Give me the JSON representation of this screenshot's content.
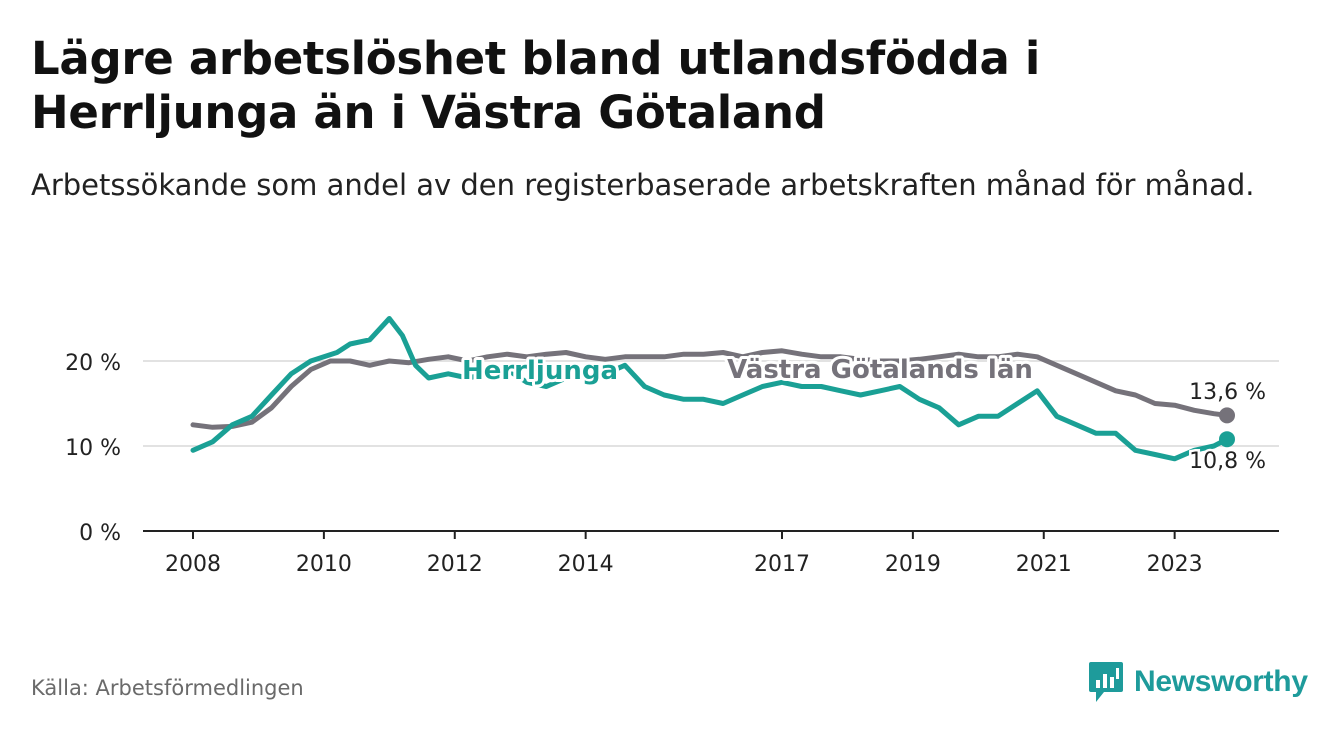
{
  "title": "Lägre arbetslöshet bland utlandsfödda i Herrljunga än i Västra Götaland",
  "subtitle": "Arbetssökande som andel av den registerbaserade arbetskraften månad för månad.",
  "source": "Källa: Arbetsförmedlingen",
  "brand": "Newsworthy",
  "colors": {
    "herrljunga": "#1aa095",
    "vgl": "#75727a",
    "grid": "#d9d9d9",
    "axis": "#222222",
    "brand": "#1e9b9b"
  },
  "chart_data": {
    "type": "line",
    "title": "Lägre arbetslöshet bland utlandsfödda i Herrljunga än i Västra Götaland",
    "xlabel": "",
    "ylabel": "",
    "xlim": [
      2008,
      2023.8
    ],
    "ylim": [
      0,
      20
    ],
    "y_ticks": [
      0,
      10,
      20
    ],
    "y_tick_labels": [
      "0 %",
      "10 %",
      "20 %"
    ],
    "x_ticks": [
      2008,
      2010,
      2012,
      2014,
      2017,
      2019,
      2021,
      2023
    ],
    "x_tick_labels": [
      "2008",
      "2010",
      "2012",
      "2014",
      "2017",
      "2019",
      "2021",
      "2023"
    ],
    "series": [
      {
        "name": "Västra Götalands län",
        "label": "Västra Götalands län",
        "end_label": "13,6 %",
        "color": "#75727a",
        "x": [
          2008.0,
          2008.3,
          2008.6,
          2008.9,
          2009.2,
          2009.5,
          2009.8,
          2010.1,
          2010.4,
          2010.7,
          2011.0,
          2011.3,
          2011.6,
          2011.9,
          2012.2,
          2012.5,
          2012.8,
          2013.1,
          2013.4,
          2013.7,
          2014.0,
          2014.3,
          2014.6,
          2014.9,
          2015.2,
          2015.5,
          2015.8,
          2016.1,
          2016.4,
          2016.7,
          2017.0,
          2017.3,
          2017.6,
          2017.9,
          2018.2,
          2018.5,
          2018.8,
          2019.1,
          2019.4,
          2019.7,
          2020.0,
          2020.3,
          2020.6,
          2020.9,
          2021.2,
          2021.5,
          2021.8,
          2022.1,
          2022.4,
          2022.7,
          2023.0,
          2023.3,
          2023.6,
          2023.8
        ],
        "values": [
          12.5,
          12.2,
          12.3,
          12.8,
          14.5,
          17.0,
          19.0,
          20.0,
          20.0,
          19.5,
          20.0,
          19.8,
          20.2,
          20.5,
          20.0,
          20.5,
          20.8,
          20.5,
          20.8,
          21.0,
          20.5,
          20.2,
          20.5,
          20.5,
          20.5,
          20.8,
          20.8,
          21.0,
          20.5,
          21.0,
          21.2,
          20.8,
          20.5,
          20.5,
          20.2,
          20.0,
          20.0,
          20.2,
          20.5,
          20.8,
          20.5,
          20.5,
          20.8,
          20.5,
          19.5,
          18.5,
          17.5,
          16.5,
          16.0,
          15.0,
          14.8,
          14.2,
          13.8,
          13.6
        ]
      },
      {
        "name": "Herrljunga",
        "label": "Herrljunga",
        "end_label": "10,8 %",
        "color": "#1aa095",
        "x": [
          2008.0,
          2008.3,
          2008.6,
          2008.9,
          2009.2,
          2009.5,
          2009.8,
          2010.0,
          2010.2,
          2010.4,
          2010.7,
          2011.0,
          2011.2,
          2011.4,
          2011.6,
          2011.9,
          2012.2,
          2012.5,
          2012.8,
          2013.1,
          2013.4,
          2013.7,
          2014.0,
          2014.3,
          2014.6,
          2014.9,
          2015.2,
          2015.5,
          2015.8,
          2016.1,
          2016.4,
          2016.7,
          2017.0,
          2017.3,
          2017.6,
          2017.9,
          2018.2,
          2018.5,
          2018.8,
          2019.1,
          2019.4,
          2019.7,
          2020.0,
          2020.3,
          2020.6,
          2020.9,
          2021.2,
          2021.5,
          2021.8,
          2022.1,
          2022.4,
          2022.7,
          2023.0,
          2023.3,
          2023.6,
          2023.8
        ],
        "values": [
          9.5,
          10.5,
          12.5,
          13.5,
          16.0,
          18.5,
          20.0,
          20.5,
          21.0,
          22.0,
          22.5,
          25.0,
          23.0,
          19.5,
          18.0,
          18.5,
          18.0,
          18.5,
          19.0,
          17.5,
          17.0,
          18.0,
          18.5,
          18.5,
          19.5,
          17.0,
          16.0,
          15.5,
          15.5,
          15.0,
          16.0,
          17.0,
          17.5,
          17.0,
          17.0,
          16.5,
          16.0,
          16.5,
          17.0,
          15.5,
          14.5,
          12.5,
          13.5,
          13.5,
          15.0,
          16.5,
          13.5,
          12.5,
          11.5,
          11.5,
          9.5,
          9.0,
          8.5,
          9.5,
          10.0,
          10.8
        ]
      }
    ]
  }
}
